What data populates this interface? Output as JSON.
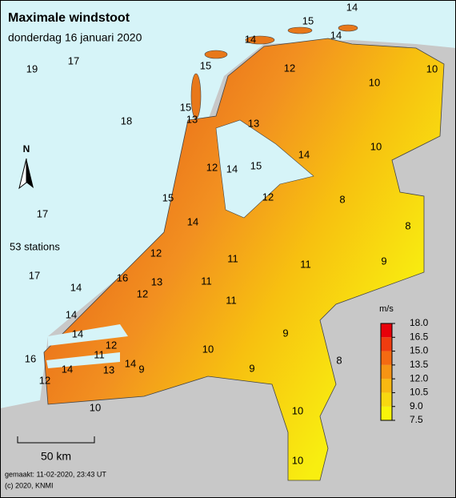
{
  "title": "Maximale windstoot",
  "subtitle": "donderdag 16 januari 2020",
  "station_count": "53 stations",
  "north": "N",
  "scale_bar": "50 km",
  "footer": [
    "gemaakt: 11-02-2020, 23:43 UT",
    "(c) 2020, KNMI"
  ],
  "stations": [
    14,
    15,
    14,
    14,
    12,
    10,
    10,
    19,
    17,
    15,
    15,
    13,
    18,
    13,
    10,
    14,
    12,
    14,
    15,
    15,
    12,
    8,
    17,
    14,
    8,
    12,
    11,
    11,
    9,
    17,
    14,
    16,
    13,
    12,
    11,
    11,
    14,
    14,
    12,
    11,
    9,
    10,
    8,
    16,
    14,
    13,
    14,
    9,
    9,
    12,
    10,
    10,
    10
  ],
  "legend": {
    "unit": "m/s",
    "ticks": [
      {
        "value": 18,
        "label": "18.0"
      },
      {
        "value": 16.5,
        "label": "16.5"
      },
      {
        "value": 15,
        "label": "15.0"
      },
      {
        "value": 13.5,
        "label": "13.5"
      },
      {
        "value": 12,
        "label": "12.0"
      },
      {
        "value": 10.5,
        "label": "10.5"
      },
      {
        "value": 9,
        "label": "9.0"
      },
      {
        "value": 7.5,
        "label": "7.5"
      }
    ],
    "colors": [
      "#e8000a",
      "#f03c10",
      "#f56a12",
      "#f79414",
      "#f8b812",
      "#f8d810",
      "#f8f40a"
    ]
  }
}
